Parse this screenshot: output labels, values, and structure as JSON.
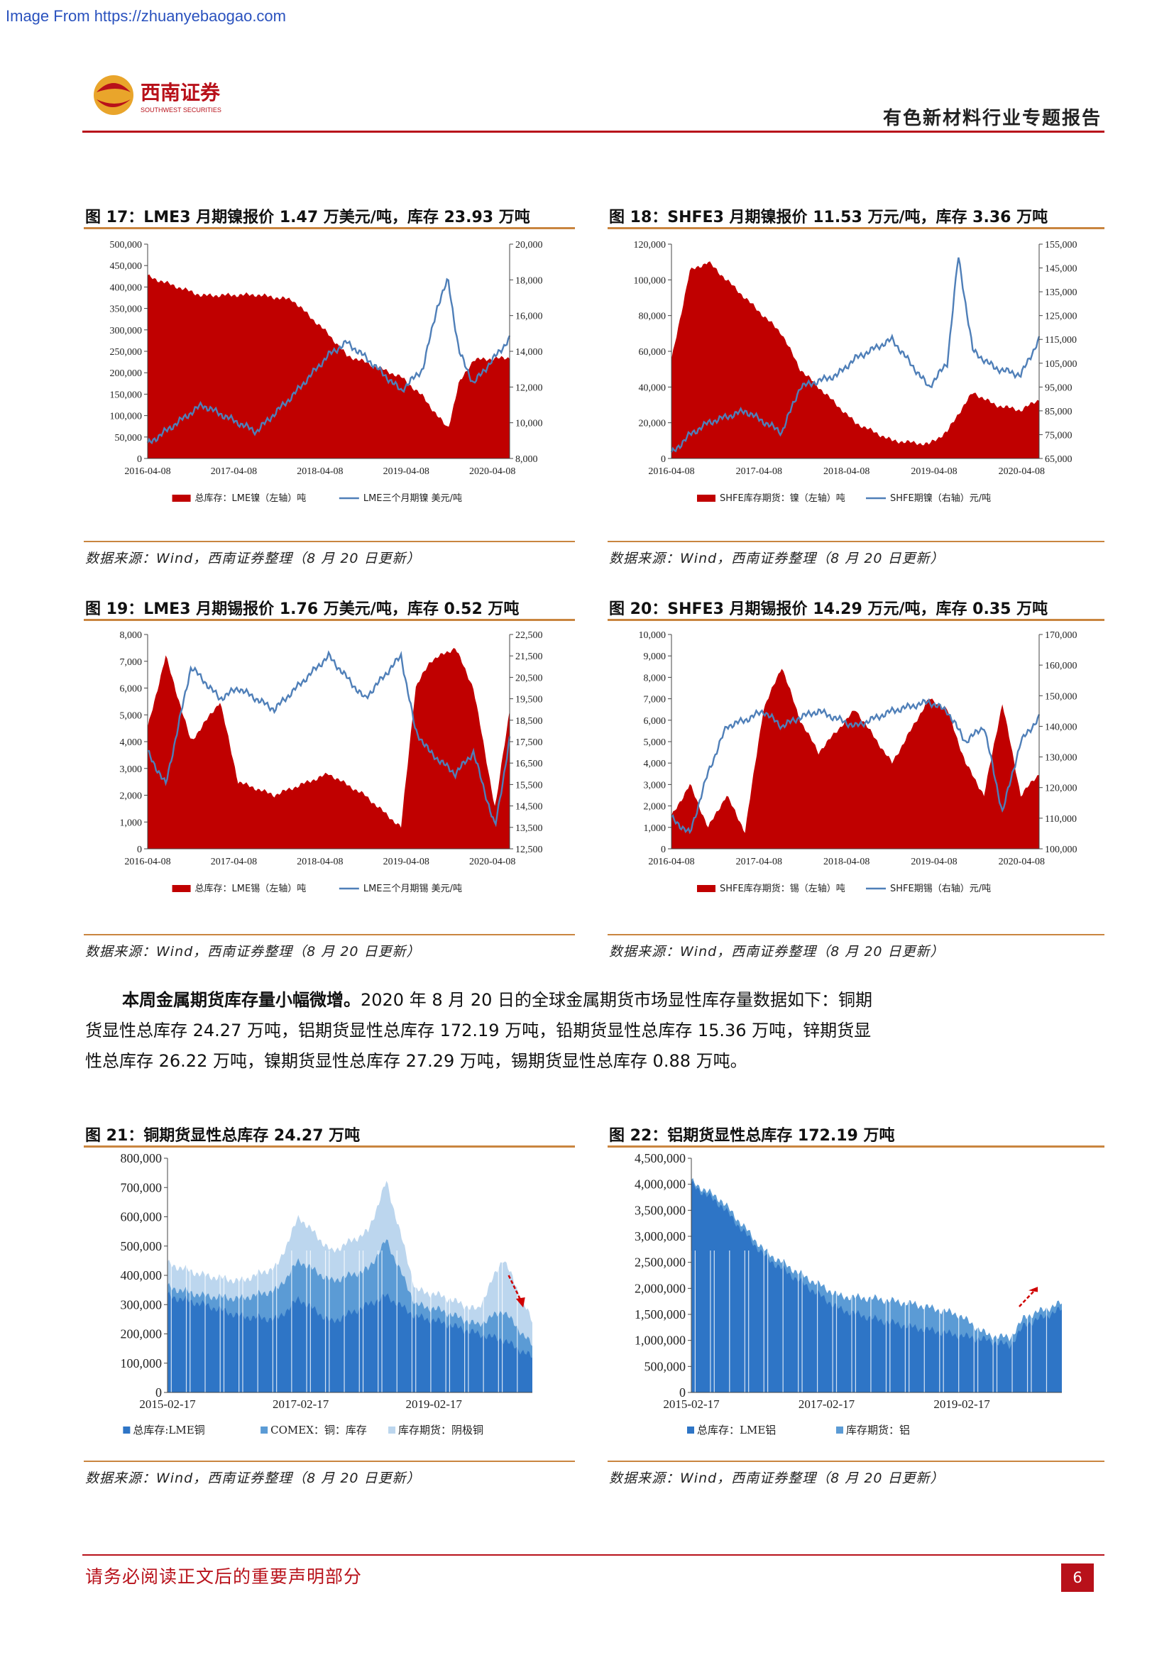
{
  "watermark": "Image From https://zhuanyebaogao.com",
  "header": {
    "brand_cn": "西南证券",
    "brand_en": "SOUTHWEST SECURITIES",
    "report_title": "有色新材料行业专题报告"
  },
  "colors": {
    "accent": "#b8111a",
    "rule": "#c9853f",
    "red_area": "#c00000",
    "blue_line": "#4f7fb8",
    "blue_dark": "#2e75c6",
    "blue_mid": "#5b9bd5",
    "blue_light": "#bcd6ee"
  },
  "figures": [
    {
      "title": "图 17：LME3 月期镍报价 1.47 万美元/吨，库存 23.93 万吨",
      "source": "数据来源：Wind，西南证券整理（8 月 20 日更新）",
      "chart_data": {
        "type": "area",
        "x_ticks": [
          "2016-04-08",
          "2017-04-08",
          "2018-04-08",
          "2019-04-08",
          "2020-04-08"
        ],
        "y_left_ticks": [
          "0",
          "50,000",
          "100,000",
          "150,000",
          "200,000",
          "250,000",
          "300,000",
          "350,000",
          "400,000",
          "450,000",
          "500,000"
        ],
        "y_right_ticks": [
          "8,000",
          "10,000",
          "12,000",
          "14,000",
          "16,000",
          "18,000",
          "20,000"
        ],
        "ylim_left": [
          0,
          500000
        ],
        "ylim_right": [
          8000,
          20000
        ],
        "legend": [
          "总库存：LME镍（左轴）吨",
          "LME三个月期镍 美元/吨"
        ],
        "x": [
          0,
          0.15,
          0.3,
          0.4,
          0.5,
          0.55,
          0.6,
          0.7,
          0.76,
          0.8,
          0.83,
          0.86,
          0.9,
          1.0
        ],
        "area": [
          425000,
          380000,
          382000,
          370000,
          290000,
          240000,
          225000,
          190000,
          145000,
          100000,
          70000,
          175000,
          230000,
          235000
        ],
        "line": [
          8800,
          11000,
          9500,
          11500,
          13800,
          14500,
          13700,
          11800,
          13000,
          16500,
          18000,
          14000,
          12200,
          14700
        ]
      }
    },
    {
      "title": "图 18：SHFE3 月期镍报价 11.53 万元/吨，库存 3.36 万吨",
      "source": "数据来源：Wind，西南证券整理（8 月 20 日更新）",
      "chart_data": {
        "type": "area",
        "x_ticks": [
          "2016-04-08",
          "2017-04-08",
          "2018-04-08",
          "2019-04-08",
          "2020-04-08"
        ],
        "y_left_ticks": [
          "0",
          "20,000",
          "40,000",
          "60,000",
          "80,000",
          "100,000",
          "120,000"
        ],
        "y_right_ticks": [
          "65,000",
          "75,000",
          "85,000",
          "95,000",
          "105,000",
          "115,000",
          "125,000",
          "135,000",
          "145,000",
          "155,000"
        ],
        "ylim_left": [
          0,
          120000
        ],
        "ylim_right": [
          65000,
          155000
        ],
        "legend": [
          "SHFE库存期货：镍（左轴）吨",
          "SHFE期镍（右轴）元/吨"
        ],
        "x": [
          0,
          0.05,
          0.1,
          0.2,
          0.3,
          0.35,
          0.45,
          0.5,
          0.6,
          0.7,
          0.75,
          0.78,
          0.82,
          0.88,
          0.95,
          1.0
        ],
        "area": [
          55000,
          105000,
          110000,
          90000,
          70000,
          50000,
          30000,
          20000,
          10000,
          8000,
          15000,
          25000,
          37000,
          30000,
          27000,
          33000
        ],
        "line": [
          67000,
          75000,
          80000,
          85000,
          76000,
          95000,
          100000,
          107000,
          115000,
          95000,
          105000,
          150000,
          110000,
          103000,
          100000,
          115000
        ]
      }
    },
    {
      "title": "图 19：LME3 月期锡报价 1.76 万美元/吨，库存 0.52 万吨",
      "source": "数据来源：Wind，西南证券整理（8 月 20 日更新）",
      "chart_data": {
        "type": "area",
        "x_ticks": [
          "2016-04-08",
          "2017-04-08",
          "2018-04-08",
          "2019-04-08",
          "2020-04-08"
        ],
        "y_left_ticks": [
          "0",
          "1,000",
          "2,000",
          "3,000",
          "4,000",
          "5,000",
          "6,000",
          "7,000",
          "8,000"
        ],
        "y_right_ticks": [
          "12,500",
          "13,500",
          "14,500",
          "15,500",
          "16,500",
          "17,500",
          "18,500",
          "19,500",
          "20,500",
          "21,500",
          "22,500"
        ],
        "ylim_left": [
          0,
          8000
        ],
        "ylim_right": [
          12500,
          22500
        ],
        "legend": [
          "总库存：LME锡（左轴）吨",
          "LME三个月期锡 美元/吨"
        ],
        "x": [
          0,
          0.05,
          0.12,
          0.2,
          0.25,
          0.35,
          0.5,
          0.6,
          0.7,
          0.74,
          0.78,
          0.85,
          0.9,
          0.96,
          1.0
        ],
        "area": [
          4500,
          7200,
          4000,
          5500,
          2500,
          2000,
          2800,
          2000,
          800,
          6000,
          7000,
          7500,
          6000,
          1500,
          5200
        ],
        "line": [
          17000,
          15500,
          21000,
          19500,
          20000,
          19000,
          21500,
          19500,
          21500,
          18000,
          17000,
          16000,
          17000,
          13500,
          17600
        ]
      }
    },
    {
      "title": "图 20：SHFE3 月期锡报价 14.29 万元/吨，库存 0.35 万吨",
      "source": "数据来源：Wind，西南证券整理（8 月 20 日更新）",
      "chart_data": {
        "type": "area",
        "x_ticks": [
          "2016-04-08",
          "2017-04-08",
          "2018-04-08",
          "2019-04-08",
          "2020-04-08"
        ],
        "y_left_ticks": [
          "0",
          "1,000",
          "2,000",
          "3,000",
          "4,000",
          "5,000",
          "6,000",
          "7,000",
          "8,000",
          "9,000",
          "10,000"
        ],
        "y_right_ticks": [
          "100,000",
          "110,000",
          "120,000",
          "130,000",
          "140,000",
          "150,000",
          "160,000",
          "170,000"
        ],
        "ylim_left": [
          0,
          10000
        ],
        "ylim_right": [
          100000,
          170000
        ],
        "legend": [
          "SHFE库存期货：锡（左轴）吨",
          "SHFE期锡（右轴）元/吨"
        ],
        "x": [
          0,
          0.05,
          0.1,
          0.15,
          0.2,
          0.25,
          0.3,
          0.35,
          0.4,
          0.5,
          0.6,
          0.7,
          0.75,
          0.8,
          0.85,
          0.9,
          0.95,
          1.0
        ],
        "area": [
          1500,
          3000,
          1000,
          2500,
          800,
          6500,
          8500,
          6000,
          4500,
          6500,
          4000,
          7000,
          6500,
          4000,
          2500,
          6800,
          2500,
          3500
        ],
        "line": [
          110000,
          105000,
          125000,
          140000,
          142000,
          145000,
          140000,
          143000,
          145000,
          140000,
          145000,
          148000,
          145000,
          135000,
          140000,
          112000,
          135000,
          142900
        ]
      }
    },
    {
      "title": "图 21：铜期货显性总库存 24.27 万吨",
      "source": "数据来源：Wind，西南证券整理（8 月 20 日更新）",
      "chart_data": {
        "type": "area",
        "x_ticks": [
          "2015-02-17",
          "2017-02-17",
          "2019-02-17"
        ],
        "y_ticks": [
          "0",
          "100,000",
          "200,000",
          "300,000",
          "400,000",
          "500,000",
          "600,000",
          "700,000",
          "800,000"
        ],
        "ylim": [
          0,
          800000
        ],
        "legend": [
          "总库存:LME铜",
          "COMEX：铜：库存",
          "库存期货：阴极铜"
        ],
        "x": [
          0,
          0.1,
          0.2,
          0.3,
          0.36,
          0.45,
          0.55,
          0.6,
          0.68,
          0.75,
          0.85,
          0.92,
          1.0
        ],
        "series": [
          {
            "name": "总库存:LME铜",
            "values": [
              330000,
              300000,
              260000,
              250000,
              320000,
              240000,
              300000,
              330000,
              260000,
              240000,
              200000,
              180000,
              120000
            ]
          },
          {
            "name": "COMEX：铜：库存",
            "values": [
              360000,
              330000,
              320000,
              350000,
              450000,
              380000,
              420000,
              520000,
              300000,
              280000,
              230000,
              280000,
              160000
            ]
          },
          {
            "name": "库存期货：阴极铜",
            "values": [
              440000,
              400000,
              380000,
              430000,
              600000,
              480000,
              550000,
              720000,
              350000,
              330000,
              280000,
              460000,
              240000
            ]
          }
        ]
      }
    },
    {
      "title": "图 22：铝期货显性总库存 172.19 万吨",
      "source": "数据来源：Wind，西南证券整理（8 月 20 日更新）",
      "chart_data": {
        "type": "area",
        "x_ticks": [
          "2015-02-17",
          "2017-02-17",
          "2019-02-17"
        ],
        "y_ticks": [
          "0",
          "500,000",
          "1,000,000",
          "1,500,000",
          "2,000,000",
          "2,500,000",
          "3,000,000",
          "3,500,000",
          "4,000,000",
          "4,500,000"
        ],
        "ylim": [
          0,
          4500000
        ],
        "legend": [
          "总库存：LME铝",
          "库存期货：铝"
        ],
        "x": [
          0,
          0.08,
          0.2,
          0.3,
          0.4,
          0.5,
          0.6,
          0.72,
          0.8,
          0.86,
          0.9,
          1.0
        ],
        "series": [
          {
            "name": "总库存：LME铝",
            "values": [
              4000000,
              3600000,
              2600000,
              2100000,
              1600000,
              1400000,
              1250000,
              1100000,
              1000000,
              900000,
              1300000,
              1600000
            ]
          },
          {
            "name": "库存期货：铝",
            "values": [
              4050000,
              3700000,
              2700000,
              2250000,
              1850000,
              1800000,
              1700000,
              1500000,
              1100000,
              1050000,
              1450000,
              1720000
            ]
          }
        ]
      }
    }
  ],
  "paragraph": {
    "lead": "本周金属期货库存量小幅微增。",
    "body": "2020 年 8 月 20 日的全球金属期货市场显性库存量数据如下：铜期货显性总库存 24.27 万吨，铝期货显性总库存 172.19 万吨，铅期货显性总库存 15.36 万吨，锌期货显性总库存 26.22 万吨，镍期货显性总库存 27.29 万吨，锡期货显性总库存 0.88 万吨。"
  },
  "footer": {
    "notice": "请务必阅读正文后的重要声明部分",
    "page": "6"
  }
}
